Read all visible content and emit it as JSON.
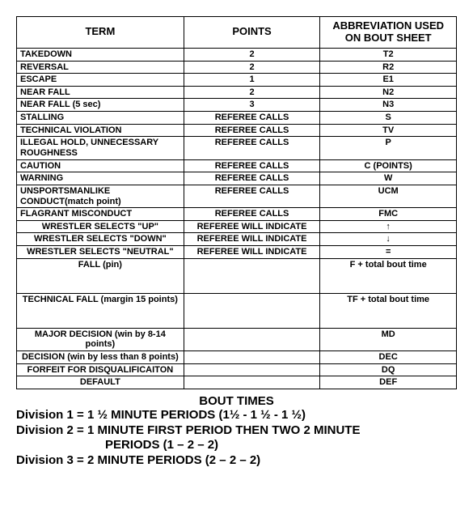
{
  "table": {
    "headers": [
      "TERM",
      "POINTS",
      "ABBREVIATION USED ON BOUT SHEET"
    ],
    "rows": [
      {
        "term": "TAKEDOWN",
        "points": "2",
        "abbr": "T2",
        "termAlign": "left",
        "tall": false
      },
      {
        "term": "REVERSAL",
        "points": "2",
        "abbr": "R2",
        "termAlign": "left",
        "tall": false
      },
      {
        "term": "ESCAPE",
        "points": "1",
        "abbr": "E1",
        "termAlign": "left",
        "tall": false
      },
      {
        "term": "NEAR FALL",
        "points": "2",
        "abbr": "N2",
        "termAlign": "left",
        "tall": false
      },
      {
        "term": "NEAR FALL (5 sec)",
        "points": "3",
        "abbr": "N3",
        "termAlign": "left",
        "tall": false
      },
      {
        "term": "STALLING",
        "points": "REFEREE CALLS",
        "abbr": "S",
        "termAlign": "left",
        "tall": false
      },
      {
        "term": "TECHNICAL VIOLATION",
        "points": "REFEREE CALLS",
        "abbr": "TV",
        "termAlign": "left",
        "tall": false
      },
      {
        "term": "ILLEGAL HOLD, UNNECESSARY ROUGHNESS",
        "points": "REFEREE CALLS",
        "abbr": "P",
        "termAlign": "left",
        "tall": false
      },
      {
        "term": "CAUTION",
        "points": "REFEREE CALLS",
        "abbr": "C (POINTS)",
        "termAlign": "left",
        "tall": false
      },
      {
        "term": "WARNING",
        "points": "REFEREE CALLS",
        "abbr": "W",
        "termAlign": "left",
        "tall": false
      },
      {
        "term": "UNSPORTSMANLIKE CONDUCT(match point)",
        "points": "REFEREE CALLS",
        "abbr": "UCM",
        "termAlign": "left",
        "tall": false
      },
      {
        "term": "FLAGRANT MISCONDUCT",
        "points": "REFEREE CALLS",
        "abbr": "FMC",
        "termAlign": "left",
        "tall": false
      },
      {
        "term": "WRESTLER SELECTS \"UP\"",
        "points": "REFEREE WILL INDICATE",
        "abbr": "↑",
        "termAlign": "center",
        "tall": false
      },
      {
        "term": "WRESTLER SELECTS \"DOWN\"",
        "points": "REFEREE WILL INDICATE",
        "abbr": "↓",
        "termAlign": "center",
        "tall": false
      },
      {
        "term": "WRESTLER SELECTS \"NEUTRAL\"",
        "points": "REFEREE WILL INDICATE",
        "abbr": "=",
        "termAlign": "center",
        "tall": false
      },
      {
        "term": "FALL (pin)",
        "points": "",
        "abbr": "F + total bout time",
        "termAlign": "center",
        "tall": true
      },
      {
        "term": "TECHNICAL FALL (margin 15 points)",
        "points": "",
        "abbr": "TF + total bout time",
        "termAlign": "center",
        "tall": true
      },
      {
        "term": "MAJOR DECISION (win by 8-14 points)",
        "points": "",
        "abbr": "MD",
        "termAlign": "center",
        "tall": false
      },
      {
        "term": "DECISION (win by less than 8 points)",
        "points": "",
        "abbr": "DEC",
        "termAlign": "center",
        "tall": false
      },
      {
        "term": "FORFEIT FOR DISQUALIFICAITON",
        "points": "",
        "abbr": "DQ",
        "termAlign": "center",
        "tall": false
      },
      {
        "term": "DEFAULT",
        "points": "",
        "abbr": "DEF",
        "termAlign": "center",
        "tall": false
      }
    ]
  },
  "boutTimes": {
    "title": "BOUT TIMES",
    "lines": [
      {
        "text": "Division 1 = 1 ½ MINUTE PERIODS (1½ - 1 ½ - 1 ½)",
        "indent": false
      },
      {
        "text": "Division 2 = 1 MINUTE FIRST PERIOD THEN TWO 2 MINUTE",
        "indent": false
      },
      {
        "text": "PERIODS (1 – 2 – 2)",
        "indent": true
      },
      {
        "text": "Division 3 = 2 MINUTE PERIODS (2 – 2 – 2)",
        "indent": false
      }
    ]
  }
}
